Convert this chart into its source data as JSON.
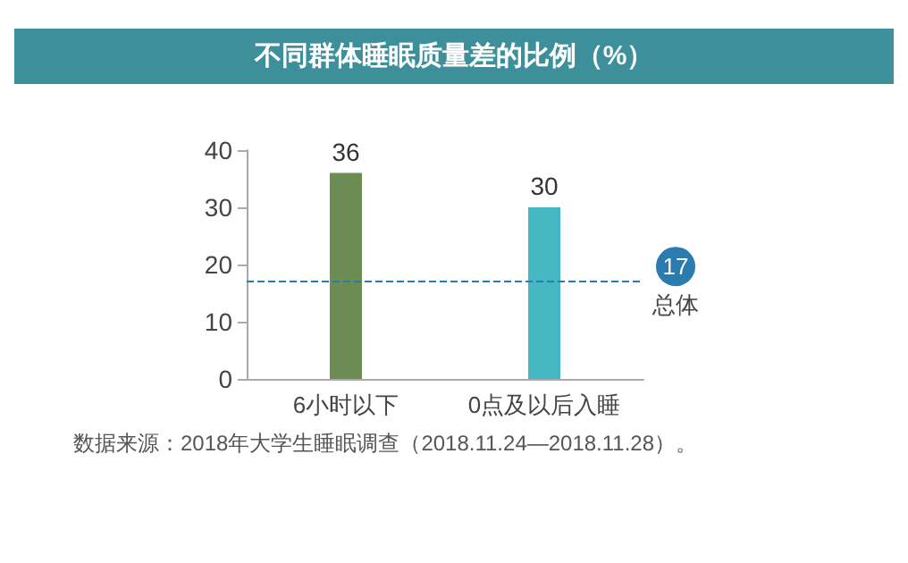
{
  "chart_data": {
    "type": "bar",
    "title": "不同群体睡眠质量差的比例（%）",
    "categories": [
      "6小时以下",
      "0点及以后入睡"
    ],
    "values": [
      36,
      30
    ],
    "colors": [
      "#6b8c52",
      "#45b7c2"
    ],
    "ylim": [
      0,
      40
    ],
    "yticks": [
      0,
      10,
      20,
      30,
      40
    ],
    "grid": false,
    "data_labels": true,
    "ref_lines": [
      {
        "axis": "y",
        "value": 17,
        "label": "17",
        "color": "#2a7bb0",
        "line_style": "dashed"
      }
    ],
    "annotations": [
      "总体",
      "数据来源：2018年大学生睡眠调查（2018.11.24—2018.11.28）。"
    ]
  }
}
